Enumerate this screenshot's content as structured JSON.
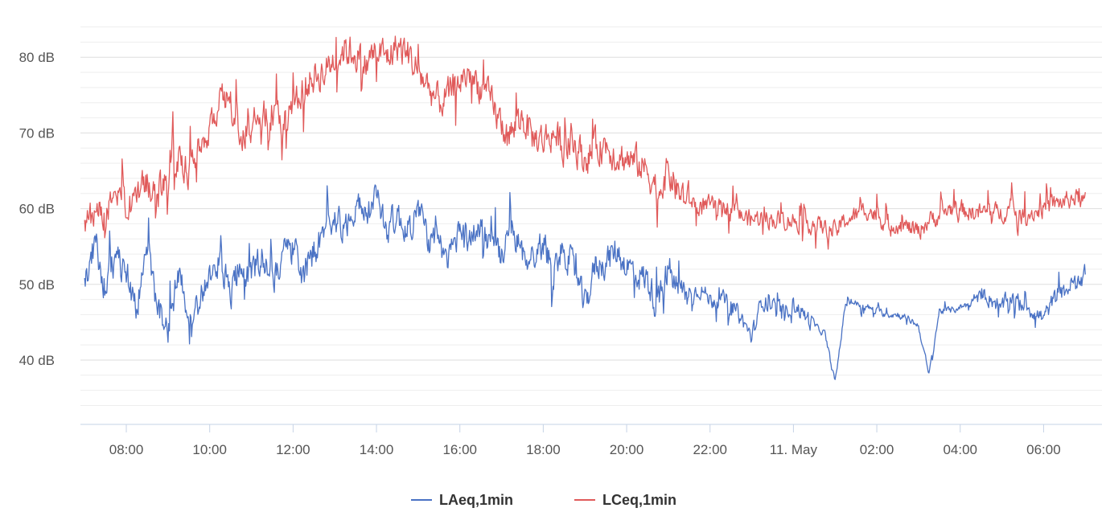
{
  "colors": {
    "background": "#ffffff",
    "grid_major": "#dddddd",
    "grid_minor": "#eeeeee",
    "axis_line": "#c6d3e6",
    "tick_text": "#555555",
    "laeq": "#4a72c4",
    "lceq": "#e05a5a"
  },
  "chart_data": {
    "type": "line",
    "title": "",
    "xlabel": "",
    "ylabel": "",
    "grid": true,
    "legend_placement": "bottom-center",
    "x_unit": "hours since 00:00 on 10 May",
    "xlim": [
      6.9,
      31.4
    ],
    "ylim": [
      31.5,
      86.5
    ],
    "y_ticks": [
      40,
      50,
      60,
      70,
      80
    ],
    "y_tick_labels": [
      "40 dB",
      "50 dB",
      "60 dB",
      "70 dB",
      "80 dB"
    ],
    "x_ticks": [
      8,
      10,
      12,
      14,
      16,
      18,
      20,
      22,
      24,
      26,
      28,
      30
    ],
    "x_tick_labels": [
      "08:00",
      "10:00",
      "12:00",
      "14:00",
      "16:00",
      "18:00",
      "20:00",
      "22:00",
      "11. May",
      "02:00",
      "04:00",
      "06:00"
    ],
    "series": [
      {
        "name": "LAeq,1min",
        "color": "#4a72c4",
        "x": [
          7.0,
          7.25,
          7.5,
          7.75,
          8.0,
          8.25,
          8.5,
          8.75,
          9.0,
          9.25,
          9.5,
          9.75,
          10.0,
          10.25,
          10.5,
          10.75,
          11.0,
          11.25,
          11.5,
          11.75,
          12.0,
          12.25,
          12.5,
          12.75,
          13.0,
          13.25,
          13.5,
          13.75,
          14.0,
          14.25,
          14.5,
          14.75,
          15.0,
          15.25,
          15.5,
          15.75,
          16.0,
          16.25,
          16.5,
          16.75,
          17.0,
          17.25,
          17.5,
          17.75,
          18.0,
          18.25,
          18.5,
          18.75,
          19.0,
          19.25,
          19.5,
          19.75,
          20.0,
          20.25,
          20.5,
          20.75,
          21.0,
          21.25,
          21.5,
          21.75,
          22.0,
          22.25,
          22.5,
          22.75,
          23.0,
          23.25,
          23.5,
          23.75,
          24.0,
          24.25,
          24.5,
          24.75,
          25.0,
          25.25,
          25.5,
          25.75,
          26.0,
          26.25,
          26.5,
          26.75,
          27.0,
          27.25,
          27.5,
          27.75,
          28.0,
          28.25,
          28.5,
          28.75,
          29.0,
          29.25,
          29.5,
          29.75,
          30.0,
          30.25,
          30.5,
          30.75,
          31.0
        ],
        "values": [
          50.0,
          55.5,
          49.5,
          53.5,
          51.5,
          47.0,
          55.0,
          46.5,
          44.5,
          51.0,
          46.5,
          48.0,
          50.5,
          53.5,
          48.5,
          53.0,
          51.0,
          54.0,
          50.5,
          53.5,
          55.0,
          51.0,
          54.5,
          56.0,
          59.5,
          57.0,
          61.0,
          58.5,
          61.5,
          57.5,
          59.0,
          57.0,
          60.0,
          56.0,
          54.5,
          53.5,
          57.5,
          56.0,
          58.0,
          55.0,
          53.5,
          57.0,
          54.0,
          53.5,
          55.5,
          52.0,
          55.0,
          51.5,
          47.0,
          52.5,
          53.0,
          54.5,
          52.5,
          51.5,
          50.5,
          47.0,
          52.0,
          49.0,
          48.5,
          49.5,
          48.0,
          48.0,
          47.5,
          45.5,
          43.0,
          48.0,
          47.0,
          46.5,
          47.5,
          46.0,
          44.5,
          43.5,
          37.0,
          47.5,
          47.5,
          47.0,
          46.5,
          46.0,
          46.0,
          45.5,
          44.5,
          38.0,
          46.5,
          46.5,
          47.0,
          47.5,
          49.0,
          48.0,
          47.0,
          48.5,
          47.5,
          46.5,
          45.5,
          48.0,
          49.0,
          50.5,
          51.5
        ]
      },
      {
        "name": "LCeq,1min",
        "color": "#e05a5a",
        "x": [
          7.0,
          7.25,
          7.5,
          7.75,
          8.0,
          8.25,
          8.5,
          8.75,
          9.0,
          9.25,
          9.5,
          9.75,
          10.0,
          10.25,
          10.5,
          10.75,
          11.0,
          11.25,
          11.5,
          11.75,
          12.0,
          12.25,
          12.5,
          12.75,
          13.0,
          13.25,
          13.5,
          13.75,
          14.0,
          14.25,
          14.5,
          14.75,
          15.0,
          15.25,
          15.5,
          15.75,
          16.0,
          16.25,
          16.5,
          16.75,
          17.0,
          17.25,
          17.5,
          17.75,
          18.0,
          18.25,
          18.5,
          18.75,
          19.0,
          19.25,
          19.5,
          19.75,
          20.0,
          20.25,
          20.5,
          20.75,
          21.0,
          21.25,
          21.5,
          21.75,
          22.0,
          22.25,
          22.5,
          22.75,
          23.0,
          23.25,
          23.5,
          23.75,
          24.0,
          24.25,
          24.5,
          24.75,
          25.0,
          25.25,
          25.5,
          25.75,
          26.0,
          26.25,
          26.5,
          26.75,
          27.0,
          27.25,
          27.5,
          27.75,
          28.0,
          28.25,
          28.5,
          28.75,
          29.0,
          29.25,
          29.5,
          29.75,
          30.0,
          30.25,
          30.5,
          30.75,
          31.0
        ],
        "values": [
          58.0,
          60.0,
          59.0,
          61.0,
          60.0,
          62.0,
          63.5,
          62.0,
          64.0,
          66.0,
          65.0,
          68.0,
          71.0,
          74.0,
          73.5,
          70.0,
          71.0,
          72.0,
          73.0,
          71.5,
          74.0,
          76.0,
          77.5,
          78.0,
          80.0,
          81.0,
          80.5,
          79.0,
          81.0,
          80.0,
          81.5,
          80.5,
          78.0,
          76.0,
          74.0,
          75.0,
          77.0,
          78.0,
          76.0,
          74.0,
          71.0,
          70.0,
          72.0,
          69.5,
          69.0,
          70.0,
          68.0,
          68.5,
          66.5,
          68.0,
          68.5,
          67.0,
          66.5,
          66.0,
          65.0,
          62.5,
          65.0,
          62.0,
          61.0,
          60.5,
          60.5,
          60.0,
          60.5,
          59.0,
          58.5,
          59.0,
          58.5,
          58.5,
          58.5,
          58.0,
          58.0,
          57.5,
          57.0,
          58.5,
          59.0,
          60.0,
          59.0,
          58.0,
          58.0,
          57.5,
          57.0,
          58.5,
          59.0,
          60.0,
          60.0,
          59.5,
          59.5,
          59.5,
          59.5,
          60.0,
          59.0,
          59.5,
          60.0,
          60.5,
          61.0,
          61.5,
          61.0
        ]
      }
    ]
  }
}
